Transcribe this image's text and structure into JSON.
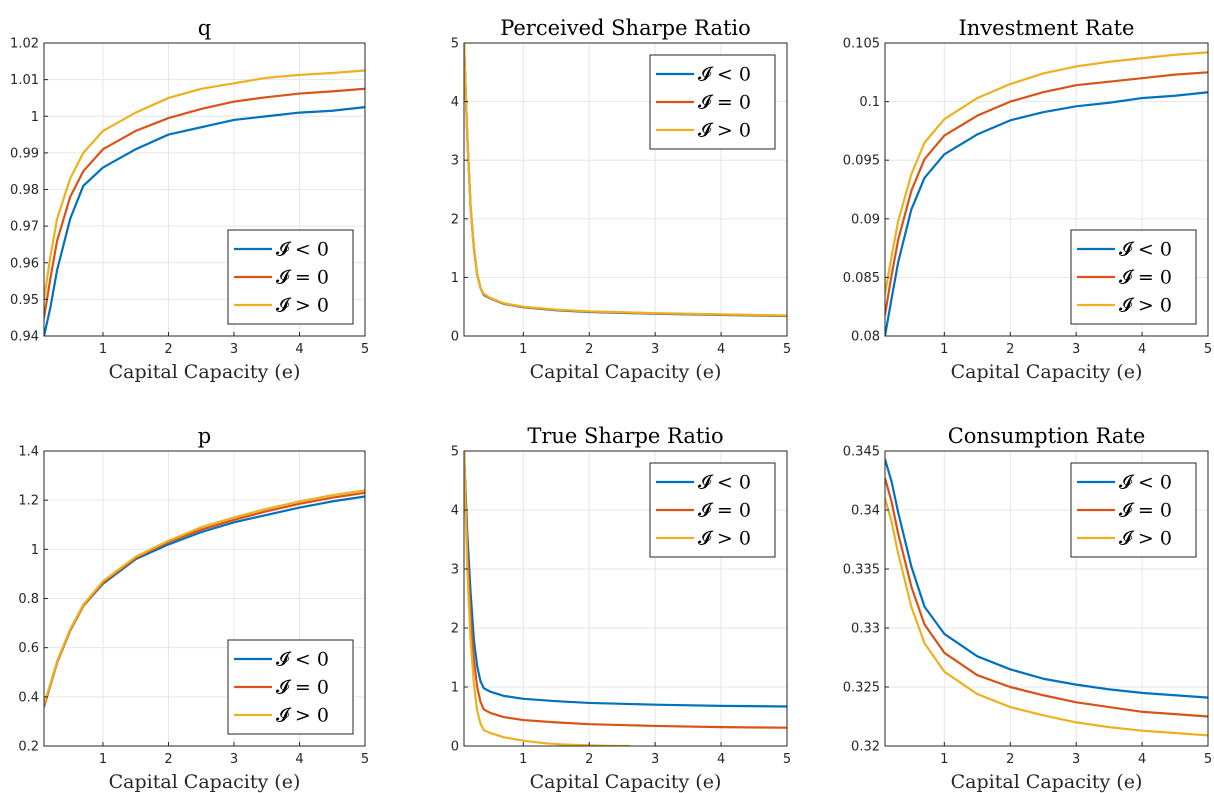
{
  "chart_data": [
    {
      "type": "line",
      "title": "q",
      "xlabel": "Capital Capacity (e)",
      "ylabel": "",
      "xlim": [
        0.1,
        5
      ],
      "ylim": [
        0.94,
        1.02
      ],
      "xticks": [
        "1",
        "2",
        "3",
        "4",
        "5"
      ],
      "yticks": [
        "0.94",
        "0.95",
        "0.96",
        "0.97",
        "0.98",
        "0.99",
        "1",
        "1.01",
        "1.02"
      ],
      "grid": true,
      "legend_position": "lower-right",
      "series": [
        {
          "name": "𝓘 < 0",
          "color": "#0072BD",
          "x": [
            0.1,
            0.2,
            0.3,
            0.5,
            0.7,
            1,
            1.5,
            2,
            2.5,
            3,
            3.5,
            4,
            4.5,
            5
          ],
          "y": [
            0.94,
            0.948,
            0.958,
            0.972,
            0.981,
            0.986,
            0.991,
            0.995,
            0.997,
            0.999,
            1.0,
            1.001,
            1.0015,
            1.0025
          ]
        },
        {
          "name": "𝓘 = 0",
          "color": "#D95319",
          "x": [
            0.1,
            0.2,
            0.3,
            0.5,
            0.7,
            1,
            1.5,
            2,
            2.5,
            3,
            3.5,
            4,
            4.5,
            5
          ],
          "y": [
            0.945,
            0.956,
            0.966,
            0.978,
            0.985,
            0.991,
            0.996,
            0.9995,
            1.002,
            1.004,
            1.0052,
            1.0062,
            1.0068,
            1.0075
          ]
        },
        {
          "name": "𝓘 > 0",
          "color": "#EDB120",
          "x": [
            0.1,
            0.2,
            0.3,
            0.5,
            0.7,
            1,
            1.5,
            2,
            2.5,
            3,
            3.5,
            4,
            4.5,
            5
          ],
          "y": [
            0.95,
            0.962,
            0.972,
            0.983,
            0.99,
            0.996,
            1.001,
            1.005,
            1.0075,
            1.009,
            1.0105,
            1.0113,
            1.0118,
            1.0125
          ]
        }
      ]
    },
    {
      "type": "line",
      "title": "Perceived Sharpe Ratio",
      "xlabel": "Capital Capacity (e)",
      "ylabel": "",
      "xlim": [
        0.1,
        5
      ],
      "ylim": [
        0,
        5
      ],
      "xticks": [
        "1",
        "2",
        "3",
        "4",
        "5"
      ],
      "yticks": [
        "0",
        "1",
        "2",
        "3",
        "4",
        "5"
      ],
      "grid": true,
      "legend_position": "top-right",
      "series": [
        {
          "name": "𝓘 < 0",
          "color": "#0072BD",
          "x": [
            0.1,
            0.15,
            0.2,
            0.25,
            0.3,
            0.35,
            0.4,
            0.5,
            0.7,
            1,
            1.5,
            2,
            3,
            4,
            5
          ],
          "y": [
            5,
            3.4,
            2.2,
            1.5,
            1.05,
            0.82,
            0.7,
            0.64,
            0.55,
            0.49,
            0.44,
            0.41,
            0.38,
            0.36,
            0.34
          ]
        },
        {
          "name": "𝓘 = 0",
          "color": "#D95319",
          "x": [
            0.1,
            0.15,
            0.2,
            0.25,
            0.3,
            0.35,
            0.4,
            0.5,
            0.7,
            1,
            1.5,
            2,
            3,
            4,
            5
          ],
          "y": [
            5,
            3.4,
            2.2,
            1.5,
            1.05,
            0.82,
            0.71,
            0.645,
            0.555,
            0.495,
            0.445,
            0.415,
            0.385,
            0.365,
            0.345
          ]
        },
        {
          "name": "𝓘 > 0",
          "color": "#EDB120",
          "x": [
            0.1,
            0.15,
            0.2,
            0.25,
            0.3,
            0.35,
            0.4,
            0.5,
            0.7,
            1,
            1.5,
            2,
            3,
            4,
            5
          ],
          "y": [
            5,
            3.4,
            2.2,
            1.5,
            1.05,
            0.82,
            0.72,
            0.65,
            0.56,
            0.5,
            0.45,
            0.42,
            0.39,
            0.37,
            0.35
          ]
        }
      ]
    },
    {
      "type": "line",
      "title": "Investment Rate",
      "xlabel": "Capital Capacity (e)",
      "ylabel": "",
      "xlim": [
        0.1,
        5
      ],
      "ylim": [
        0.08,
        0.105
      ],
      "xticks": [
        "1",
        "2",
        "3",
        "4",
        "5"
      ],
      "yticks": [
        "0.08",
        "0.085",
        "0.09",
        "0.095",
        "0.1",
        "0.105"
      ],
      "grid": true,
      "legend_position": "lower-right",
      "series": [
        {
          "name": "𝓘 < 0",
          "color": "#0072BD",
          "x": [
            0.1,
            0.2,
            0.3,
            0.5,
            0.7,
            1,
            1.5,
            2,
            2.5,
            3,
            3.5,
            4,
            4.5,
            5
          ],
          "y": [
            0.08,
            0.0832,
            0.0863,
            0.0908,
            0.0935,
            0.0955,
            0.0972,
            0.0984,
            0.0991,
            0.0996,
            0.0999,
            0.1003,
            0.1005,
            0.1008
          ]
        },
        {
          "name": "𝓘 = 0",
          "color": "#D95319",
          "x": [
            0.1,
            0.2,
            0.3,
            0.5,
            0.7,
            1,
            1.5,
            2,
            2.5,
            3,
            3.5,
            4,
            4.5,
            5
          ],
          "y": [
            0.0818,
            0.0852,
            0.0882,
            0.0924,
            0.0951,
            0.0971,
            0.0988,
            0.1,
            0.1008,
            0.1014,
            0.1017,
            0.102,
            0.1023,
            0.1025
          ]
        },
        {
          "name": "𝓘 > 0",
          "color": "#EDB120",
          "x": [
            0.1,
            0.2,
            0.3,
            0.5,
            0.7,
            1,
            1.5,
            2,
            2.5,
            3,
            3.5,
            4,
            4.5,
            5
          ],
          "y": [
            0.0836,
            0.0868,
            0.0898,
            0.0938,
            0.0965,
            0.0985,
            0.1003,
            0.1015,
            0.1024,
            0.103,
            0.1034,
            0.1037,
            0.104,
            0.1042
          ]
        }
      ]
    },
    {
      "type": "line",
      "title": "p",
      "xlabel": "Capital Capacity (e)",
      "ylabel": "",
      "xlim": [
        0.1,
        5
      ],
      "ylim": [
        0.2,
        1.4
      ],
      "xticks": [
        "1",
        "2",
        "3",
        "4",
        "5"
      ],
      "yticks": [
        "0.2",
        "0.4",
        "0.6",
        "0.8",
        "1",
        "1.2",
        "1.4"
      ],
      "grid": true,
      "legend_position": "lower-right",
      "series": [
        {
          "name": "𝓘 < 0",
          "color": "#0072BD",
          "x": [
            0.1,
            0.2,
            0.3,
            0.5,
            0.7,
            1,
            1.5,
            2,
            2.5,
            3,
            3.5,
            4,
            4.5,
            5
          ],
          "y": [
            0.36,
            0.45,
            0.54,
            0.67,
            0.77,
            0.86,
            0.96,
            1.02,
            1.07,
            1.11,
            1.14,
            1.17,
            1.195,
            1.215
          ]
        },
        {
          "name": "𝓘 = 0",
          "color": "#D95319",
          "x": [
            0.1,
            0.2,
            0.3,
            0.5,
            0.7,
            1,
            1.5,
            2,
            2.5,
            3,
            3.5,
            4,
            4.5,
            5
          ],
          "y": [
            0.36,
            0.45,
            0.54,
            0.67,
            0.77,
            0.865,
            0.965,
            1.03,
            1.08,
            1.12,
            1.155,
            1.185,
            1.21,
            1.23
          ]
        },
        {
          "name": "𝓘 > 0",
          "color": "#EDB120",
          "x": [
            0.1,
            0.2,
            0.3,
            0.5,
            0.7,
            1,
            1.5,
            2,
            2.5,
            3,
            3.5,
            4,
            4.5,
            5
          ],
          "y": [
            0.37,
            0.455,
            0.545,
            0.675,
            0.775,
            0.87,
            0.97,
            1.035,
            1.09,
            1.13,
            1.165,
            1.195,
            1.22,
            1.24
          ]
        }
      ]
    },
    {
      "type": "line",
      "title": "True Sharpe Ratio",
      "xlabel": "Capital Capacity (e)",
      "ylabel": "",
      "xlim": [
        0.1,
        5
      ],
      "ylim": [
        0,
        5
      ],
      "xticks": [
        "1",
        "2",
        "3",
        "4",
        "5"
      ],
      "yticks": [
        "0",
        "1",
        "2",
        "3",
        "4",
        "5"
      ],
      "grid": true,
      "legend_position": "top-right",
      "series": [
        {
          "name": "𝓘 < 0",
          "color": "#0072BD",
          "x": [
            0.1,
            0.15,
            0.2,
            0.25,
            0.3,
            0.35,
            0.4,
            0.5,
            0.7,
            1,
            1.5,
            2,
            3,
            4,
            5
          ],
          "y": [
            5,
            3.6,
            2.6,
            1.8,
            1.35,
            1.1,
            0.98,
            0.92,
            0.85,
            0.8,
            0.76,
            0.73,
            0.7,
            0.68,
            0.67
          ]
        },
        {
          "name": "𝓘 = 0",
          "color": "#D95319",
          "x": [
            0.1,
            0.15,
            0.2,
            0.25,
            0.3,
            0.35,
            0.4,
            0.5,
            0.7,
            1,
            1.5,
            2,
            3,
            4,
            5
          ],
          "y": [
            5,
            3.3,
            2.2,
            1.45,
            1.0,
            0.75,
            0.62,
            0.56,
            0.49,
            0.44,
            0.4,
            0.37,
            0.34,
            0.32,
            0.31
          ]
        },
        {
          "name": "𝓘 > 0",
          "color": "#EDB120",
          "x": [
            0.1,
            0.15,
            0.2,
            0.25,
            0.3,
            0.35,
            0.4,
            0.5,
            0.7,
            1,
            1.3,
            1.6,
            2,
            2.3,
            2.6
          ],
          "y": [
            5,
            3.0,
            1.8,
            1.05,
            0.6,
            0.38,
            0.27,
            0.22,
            0.15,
            0.09,
            0.05,
            0.025,
            0.01,
            0.003,
            0
          ]
        }
      ]
    },
    {
      "type": "line",
      "title": "Consumption Rate",
      "xlabel": "Capital Capacity (e)",
      "ylabel": "",
      "xlim": [
        0.1,
        5
      ],
      "ylim": [
        0.32,
        0.345
      ],
      "xticks": [
        "1",
        "2",
        "3",
        "4",
        "5"
      ],
      "yticks": [
        "0.32",
        "0.325",
        "0.33",
        "0.335",
        "0.34",
        "0.345"
      ],
      "grid": true,
      "legend_position": "top-right",
      "series": [
        {
          "name": "𝓘 < 0",
          "color": "#0072BD",
          "x": [
            0.1,
            0.2,
            0.3,
            0.5,
            0.7,
            1,
            1.5,
            2,
            2.5,
            3,
            3.5,
            4,
            4.5,
            5
          ],
          "y": [
            0.3443,
            0.3424,
            0.3398,
            0.3352,
            0.3318,
            0.3295,
            0.3276,
            0.3265,
            0.3257,
            0.3252,
            0.3248,
            0.3245,
            0.3243,
            0.3241
          ]
        },
        {
          "name": "𝓘 = 0",
          "color": "#D95319",
          "x": [
            0.1,
            0.2,
            0.3,
            0.5,
            0.7,
            1,
            1.5,
            2,
            2.5,
            3,
            3.5,
            4,
            4.5,
            5
          ],
          "y": [
            0.3427,
            0.3407,
            0.338,
            0.3335,
            0.3303,
            0.3279,
            0.326,
            0.325,
            0.3243,
            0.3237,
            0.3233,
            0.3229,
            0.3227,
            0.3225
          ]
        },
        {
          "name": "𝓘 > 0",
          "color": "#EDB120",
          "x": [
            0.1,
            0.2,
            0.3,
            0.5,
            0.7,
            1,
            1.5,
            2,
            2.5,
            3,
            3.5,
            4,
            4.5,
            5
          ],
          "y": [
            0.341,
            0.339,
            0.3363,
            0.3318,
            0.3287,
            0.3263,
            0.3244,
            0.3233,
            0.3226,
            0.322,
            0.3216,
            0.3213,
            0.3211,
            0.3209
          ]
        }
      ]
    }
  ]
}
